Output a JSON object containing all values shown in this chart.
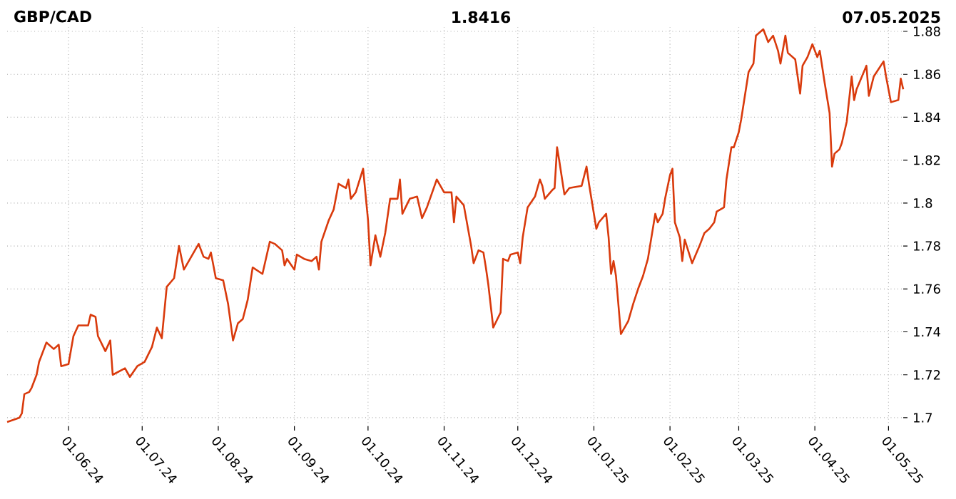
{
  "chart_data": {
    "type": "line",
    "title": "GBP/CAD",
    "annotations": [
      "1.8416",
      "07.05.2025"
    ],
    "x": [
      "2024-05-07",
      "2024-05-12",
      "2024-05-13",
      "2024-05-14",
      "2024-05-16",
      "2024-05-17",
      "2024-05-19",
      "2024-05-20",
      "2024-05-23",
      "2024-05-26",
      "2024-05-28",
      "2024-05-29",
      "2024-06-01",
      "2024-06-03",
      "2024-06-05",
      "2024-06-09",
      "2024-06-10",
      "2024-06-12",
      "2024-06-13",
      "2024-06-16",
      "2024-06-18",
      "2024-06-19",
      "2024-06-24",
      "2024-06-26",
      "2024-06-29",
      "2024-07-02",
      "2024-07-05",
      "2024-07-07",
      "2024-07-09",
      "2024-07-10",
      "2024-07-11",
      "2024-07-14",
      "2024-07-16",
      "2024-07-18",
      "2024-07-21",
      "2024-07-24",
      "2024-07-26",
      "2024-07-28",
      "2024-07-29",
      "2024-07-31",
      "2024-08-03",
      "2024-08-05",
      "2024-08-07",
      "2024-08-09",
      "2024-08-11",
      "2024-08-13",
      "2024-08-15",
      "2024-08-19",
      "2024-08-22",
      "2024-08-24",
      "2024-08-27",
      "2024-08-28",
      "2024-08-29",
      "2024-09-01",
      "2024-09-02",
      "2024-09-05",
      "2024-09-08",
      "2024-09-10",
      "2024-09-11",
      "2024-09-12",
      "2024-09-15",
      "2024-09-17",
      "2024-09-19",
      "2024-09-22",
      "2024-09-23",
      "2024-09-24",
      "2024-09-26",
      "2024-09-29",
      "2024-10-01",
      "2024-10-02",
      "2024-10-04",
      "2024-10-06",
      "2024-10-08",
      "2024-10-10",
      "2024-10-13",
      "2024-10-14",
      "2024-10-15",
      "2024-10-18",
      "2024-10-21",
      "2024-10-23",
      "2024-10-25",
      "2024-10-29",
      "2024-11-01",
      "2024-11-04",
      "2024-11-05",
      "2024-11-06",
      "2024-11-09",
      "2024-11-12",
      "2024-11-13",
      "2024-11-15",
      "2024-11-17",
      "2024-11-18",
      "2024-11-19",
      "2024-11-21",
      "2024-11-24",
      "2024-11-25",
      "2024-11-27",
      "2024-11-28",
      "2024-12-01",
      "2024-12-02",
      "2024-12-03",
      "2024-12-05",
      "2024-12-08",
      "2024-12-10",
      "2024-12-11",
      "2024-12-12",
      "2024-12-15",
      "2024-12-16",
      "2024-12-17",
      "2024-12-18",
      "2024-12-20",
      "2024-12-22",
      "2024-12-27",
      "2024-12-29",
      "2024-12-30",
      "2025-01-02",
      "2025-01-03",
      "2025-01-06",
      "2025-01-07",
      "2025-01-08",
      "2025-01-09",
      "2025-01-10",
      "2025-01-12",
      "2025-01-15",
      "2025-01-17",
      "2025-01-19",
      "2025-01-21",
      "2025-01-23",
      "2025-01-26",
      "2025-01-27",
      "2025-01-29",
      "2025-01-30",
      "2025-02-01",
      "2025-02-02",
      "2025-02-03",
      "2025-02-05",
      "2025-02-06",
      "2025-02-07",
      "2025-02-10",
      "2025-02-13",
      "2025-02-15",
      "2025-02-17",
      "2025-02-19",
      "2025-02-20",
      "2025-02-23",
      "2025-02-24",
      "2025-02-26",
      "2025-02-27",
      "2025-03-01",
      "2025-03-02",
      "2025-03-05",
      "2025-03-07",
      "2025-03-08",
      "2025-03-11",
      "2025-03-13",
      "2025-03-15",
      "2025-03-17",
      "2025-03-18",
      "2025-03-20",
      "2025-03-21",
      "2025-03-24",
      "2025-03-26",
      "2025-03-27",
      "2025-03-29",
      "2025-03-31",
      "2025-04-02",
      "2025-04-03",
      "2025-04-05",
      "2025-04-07",
      "2025-04-08",
      "2025-04-09",
      "2025-04-11",
      "2025-04-12",
      "2025-04-14",
      "2025-04-16",
      "2025-04-17",
      "2025-04-18",
      "2025-04-22",
      "2025-04-23",
      "2025-04-25",
      "2025-04-29",
      "2025-04-30",
      "2025-05-02",
      "2025-05-05",
      "2025-05-06",
      "2025-05-07"
    ],
    "series": [
      {
        "color": "#d93a0c",
        "values": [
          1.698,
          1.7,
          1.702,
          1.711,
          1.712,
          1.714,
          1.72,
          1.726,
          1.735,
          1.732,
          1.734,
          1.724,
          1.725,
          1.738,
          1.743,
          1.743,
          1.748,
          1.747,
          1.738,
          1.731,
          1.736,
          1.72,
          1.723,
          1.719,
          1.724,
          1.726,
          1.733,
          1.742,
          1.737,
          1.749,
          1.761,
          1.765,
          1.78,
          1.769,
          1.775,
          1.781,
          1.775,
          1.774,
          1.777,
          1.765,
          1.764,
          1.753,
          1.736,
          1.744,
          1.746,
          1.755,
          1.77,
          1.767,
          1.782,
          1.781,
          1.778,
          1.771,
          1.774,
          1.769,
          1.776,
          1.774,
          1.773,
          1.775,
          1.769,
          1.782,
          1.792,
          1.797,
          1.809,
          1.807,
          1.811,
          1.802,
          1.805,
          1.816,
          1.792,
          1.771,
          1.785,
          1.775,
          1.786,
          1.802,
          1.802,
          1.811,
          1.795,
          1.802,
          1.803,
          1.793,
          1.798,
          1.811,
          1.805,
          1.805,
          1.791,
          1.803,
          1.799,
          1.78,
          1.772,
          1.778,
          1.777,
          1.77,
          1.762,
          1.742,
          1.749,
          1.774,
          1.773,
          1.776,
          1.777,
          1.772,
          1.784,
          1.798,
          1.803,
          1.811,
          1.808,
          1.802,
          1.806,
          1.807,
          1.826,
          1.819,
          1.804,
          1.807,
          1.808,
          1.817,
          1.809,
          1.788,
          1.791,
          1.795,
          1.784,
          1.767,
          1.773,
          1.766,
          1.739,
          1.745,
          1.753,
          1.76,
          1.766,
          1.774,
          1.795,
          1.791,
          1.795,
          1.802,
          1.813,
          1.816,
          1.791,
          1.784,
          1.773,
          1.783,
          1.772,
          1.78,
          1.786,
          1.788,
          1.791,
          1.796,
          1.798,
          1.811,
          1.826,
          1.826,
          1.833,
          1.839,
          1.861,
          1.865,
          1.878,
          1.881,
          1.875,
          1.878,
          1.871,
          1.865,
          1.878,
          1.87,
          1.867,
          1.851,
          1.864,
          1.868,
          1.874,
          1.868,
          1.871,
          1.856,
          1.842,
          1.817,
          1.823,
          1.825,
          1.828,
          1.838,
          1.859,
          1.848,
          1.853,
          1.864,
          1.85,
          1.859,
          1.866,
          1.859,
          1.847,
          1.848,
          1.858,
          1.853
        ]
      }
    ],
    "xlim": [
      "2024-05-07",
      "2025-05-07"
    ],
    "ylim": [
      1.696,
      1.882
    ],
    "xticks": [
      {
        "value": "2024-06-01",
        "label": "01.06.24"
      },
      {
        "value": "2024-07-01",
        "label": "01.07.24"
      },
      {
        "value": "2024-08-01",
        "label": "01.08.24"
      },
      {
        "value": "2024-09-01",
        "label": "01.09.24"
      },
      {
        "value": "2024-10-01",
        "label": "01.10.24"
      },
      {
        "value": "2024-11-01",
        "label": "01.11.24"
      },
      {
        "value": "2024-12-01",
        "label": "01.12.24"
      },
      {
        "value": "2025-01-01",
        "label": "01.01.25"
      },
      {
        "value": "2025-02-01",
        "label": "01.02.25"
      },
      {
        "value": "2025-03-01",
        "label": "01.03.25"
      },
      {
        "value": "2025-04-01",
        "label": "01.04.25"
      },
      {
        "value": "2025-05-01",
        "label": "01.05.25"
      }
    ],
    "yticks": [
      1.7,
      1.72,
      1.74,
      1.76,
      1.78,
      {
        "value": 1.8,
        "label": "1.8"
      },
      1.82,
      1.84,
      1.86,
      1.88
    ],
    "grid": true
  }
}
